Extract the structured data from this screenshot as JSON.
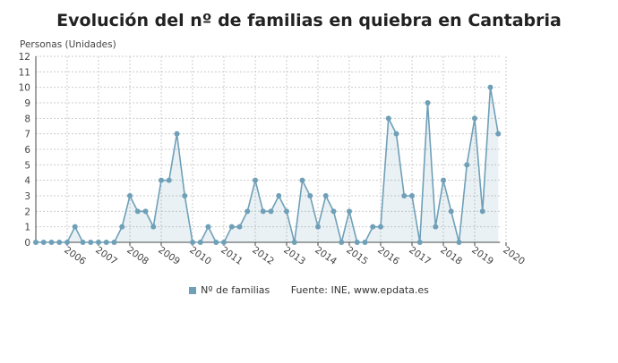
{
  "chart_data": {
    "type": "area",
    "title": "Evolución del nº de familias en quiebra en Cantabria",
    "ylabel": "Personas (Unidades)",
    "xlabel": "",
    "ylim": [
      0,
      12
    ],
    "yticks": [
      0,
      1,
      2,
      3,
      4,
      5,
      6,
      7,
      8,
      9,
      10,
      11,
      12
    ],
    "xtick_labels": [
      "2006",
      "2007",
      "2008",
      "2009",
      "2010",
      "2011",
      "2012",
      "2013",
      "2014",
      "2015",
      "2016",
      "2017",
      "2018",
      "2019",
      "2020"
    ],
    "grid": true,
    "legend_position": "bottom",
    "series": [
      {
        "name": "Nº de familias",
        "color": "#6fa0b8",
        "values": [
          0,
          0,
          0,
          0,
          0,
          1,
          0,
          0,
          0,
          0,
          0,
          1,
          3,
          2,
          2,
          1,
          4,
          4,
          7,
          3,
          0,
          0,
          1,
          0,
          0,
          1,
          1,
          2,
          4,
          2,
          2,
          3,
          2,
          0,
          4,
          3,
          1,
          3,
          2,
          0,
          2,
          0,
          0,
          1,
          1,
          8,
          7,
          3,
          3,
          0,
          9,
          1,
          4,
          2,
          0,
          5,
          8,
          2,
          10,
          7
        ]
      }
    ],
    "source": "Fuente: INE, www.epdata.es"
  }
}
